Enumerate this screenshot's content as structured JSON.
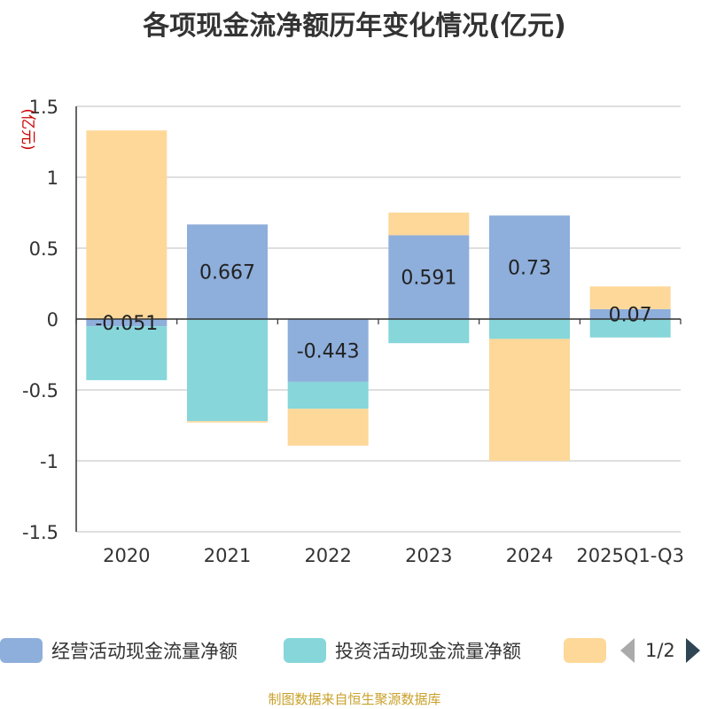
{
  "title": "各项现金流净额历年变化情况(亿元)",
  "source": "制图数据来自恒生聚源数据库",
  "colors": {
    "operating": "#8eaedb",
    "investing": "#86d6da",
    "financing": "#fdd899",
    "axis": "#333333",
    "grid": "#cccccc",
    "unit": "#cc0000"
  },
  "chart_data": {
    "type": "bar",
    "stacked": true,
    "title": "各项现金流净额历年变化情况(亿元)",
    "ylabel": "(亿元)",
    "ylim": [
      -1.5,
      1.5
    ],
    "yticks": [
      1.5,
      1,
      0.5,
      0,
      -0.5,
      -1,
      -1.5
    ],
    "ytick_labels": [
      "1.5",
      "1",
      "0.5",
      "0",
      "-0.5",
      "-1",
      "-1.5"
    ],
    "categories": [
      "2020",
      "2021",
      "2022",
      "2023",
      "2024",
      "2025Q1-Q3"
    ],
    "series": [
      {
        "name": "经营活动现金流量净额",
        "key": "operating",
        "values": [
          -0.051,
          0.667,
          -0.443,
          0.591,
          0.73,
          0.07
        ],
        "labels": [
          "-0.051",
          "0.667",
          "-0.443",
          "0.591",
          "0.73",
          "0.07"
        ]
      },
      {
        "name": "投资活动现金流量净额",
        "key": "investing",
        "values": [
          -0.38,
          -0.72,
          -0.19,
          -0.17,
          -0.14,
          -0.13
        ]
      },
      {
        "name": "",
        "key": "financing",
        "values": [
          1.33,
          -0.01,
          -0.26,
          0.16,
          -0.86,
          0.16
        ]
      }
    ]
  },
  "legend": {
    "items": [
      {
        "label": "经营活动现金流量净额"
      },
      {
        "label": "投资活动现金流量净额"
      },
      {
        "label": ""
      }
    ],
    "pager": "1/2"
  }
}
